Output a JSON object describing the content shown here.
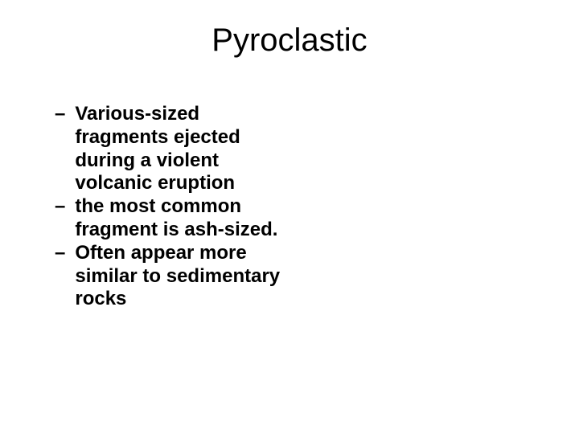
{
  "slide": {
    "title": "Pyroclastic",
    "bullets": [
      {
        "dash": "–",
        "text": "Various-sized fragments ejected during a violent volcanic eruption"
      },
      {
        "dash": "–",
        "text": "the most common fragment is ash-sized."
      },
      {
        "dash": "–",
        "text": "Often appear more similar to sedimentary rocks"
      }
    ],
    "styling": {
      "background_color": "#ffffff",
      "title_color": "#000000",
      "title_fontsize": 40,
      "title_fontweight": "normal",
      "bullet_color": "#000000",
      "bullet_fontsize": 24,
      "bullet_fontweight": "bold",
      "font_family": "Arial"
    }
  }
}
